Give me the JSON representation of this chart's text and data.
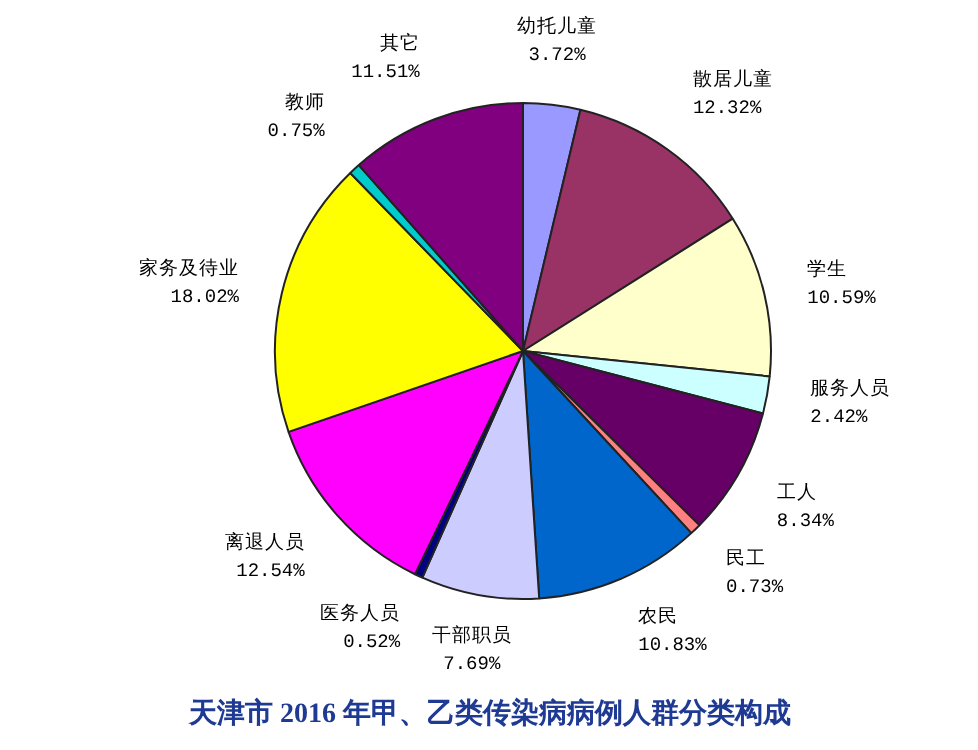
{
  "chart_data": {
    "type": "pie",
    "title": "天津市 2016 年甲、乙类传染病病例人群分类构成",
    "categories": [
      "幼托儿童",
      "散居儿童",
      "学生",
      "服务人员",
      "工人",
      "民工",
      "农民",
      "干部职员",
      "医务人员",
      "离退人员",
      "家务及待业",
      "教师",
      "其它"
    ],
    "values": [
      3.72,
      12.32,
      10.59,
      2.42,
      8.34,
      0.73,
      10.83,
      7.69,
      0.52,
      12.54,
      18.02,
      0.75,
      11.51
    ],
    "colors": [
      "#9999ff",
      "#993366",
      "#ffffcc",
      "#ccffff",
      "#660066",
      "#ff8080",
      "#0066cc",
      "#ccccff",
      "#000080",
      "#ff00ff",
      "#ffff00",
      "#00cccc",
      "#800080"
    ],
    "value_labels": [
      "3.72%",
      "12.32%",
      "10.59%",
      "2.42%",
      "8.34%",
      "0.73%",
      "10.83%",
      "7.69%",
      "0.52%",
      "12.54%",
      "18.02%",
      "0.75%",
      "11.51%"
    ]
  }
}
